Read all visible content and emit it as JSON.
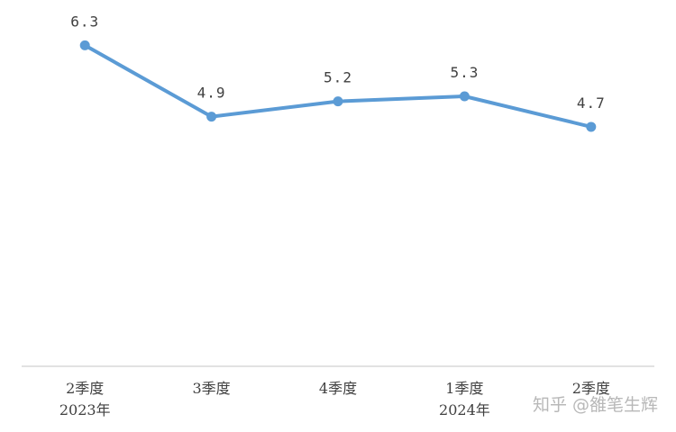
{
  "chart_data": {
    "type": "line",
    "categories": [
      [
        "2季度",
        "2023年"
      ],
      [
        "3季度"
      ],
      [
        "4季度"
      ],
      [
        "1季度",
        "2024年"
      ],
      [
        "2季度"
      ]
    ],
    "series": [
      {
        "values": [
          6.3,
          4.9,
          5.2,
          5.3,
          4.7
        ],
        "color": "#5B9BD5"
      }
    ],
    "data_labels": [
      "6.3",
      "4.9",
      "5.2",
      "5.3",
      "4.7"
    ],
    "ylim": [
      0,
      7.19
    ],
    "grid": false,
    "legend": "none"
  },
  "watermark": "知乎 @雒笔生辉"
}
